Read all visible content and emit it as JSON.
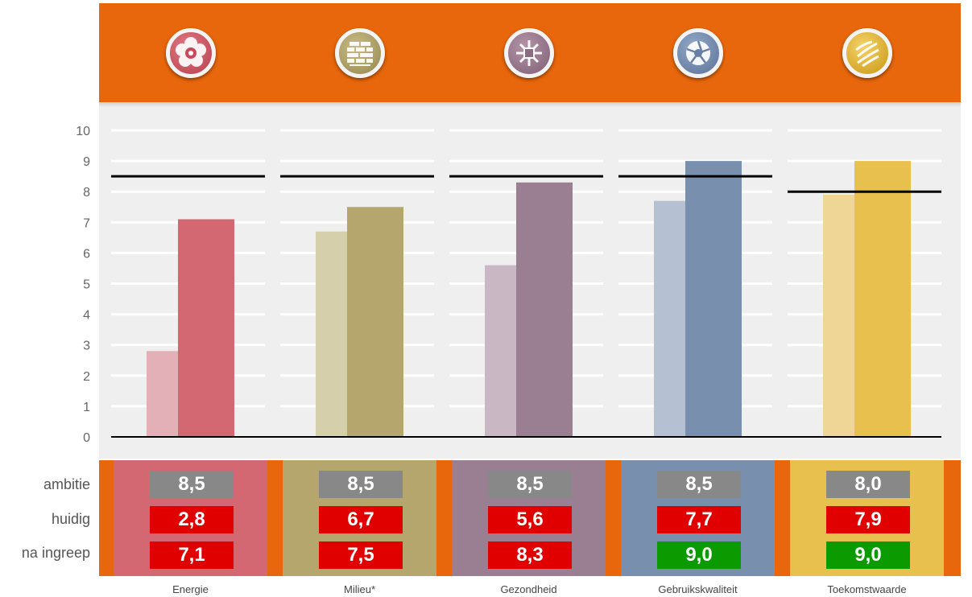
{
  "chart_data": {
    "type": "bar",
    "categories": [
      "Energie",
      "Milieu*",
      "Gezondheid",
      "Gebruikskwaliteit",
      "Toekomstwaarde"
    ],
    "ylim": [
      0,
      10
    ],
    "yticks": [
      "0",
      "1",
      "2",
      "3",
      "4",
      "5",
      "6",
      "7",
      "8",
      "9",
      "10"
    ],
    "grid": true,
    "series": [
      {
        "key": "ambitie",
        "values": [
          8.5,
          8.5,
          8.5,
          8.5,
          8.0
        ],
        "display": [
          "8,5",
          "8,5",
          "8,5",
          "8,5",
          "8,0"
        ]
      },
      {
        "key": "huidig",
        "values": [
          2.8,
          6.7,
          5.6,
          7.7,
          7.9
        ],
        "display": [
          "2,8",
          "6,7",
          "5,6",
          "7,7",
          "7,9"
        ]
      },
      {
        "key": "na ingreep",
        "values": [
          7.1,
          7.5,
          8.3,
          9.0,
          9.0
        ],
        "display": [
          "7,1",
          "7,5",
          "8,3",
          "9,0",
          "9,0"
        ]
      }
    ],
    "row_labels": [
      "ambitie",
      "huidig",
      "na ingreep"
    ]
  },
  "colors": {
    "header": "#e8670c",
    "category_dark": [
      "#d46872",
      "#b5a66d",
      "#9a7e91",
      "#7890ae",
      "#e8c04e"
    ],
    "category_light": [
      "#e4b0b7",
      "#d6cfac",
      "#c9b8c3",
      "#b5c1d2",
      "#efd697"
    ],
    "cell_gray": "#888888",
    "cell_red": "#e00000",
    "cell_green": "#0b9a00",
    "ambition_line": "#000000"
  },
  "icons": [
    "flower-icon",
    "brick-wall-icon",
    "snowflake-icon",
    "aperture-icon",
    "sphere-icon"
  ]
}
